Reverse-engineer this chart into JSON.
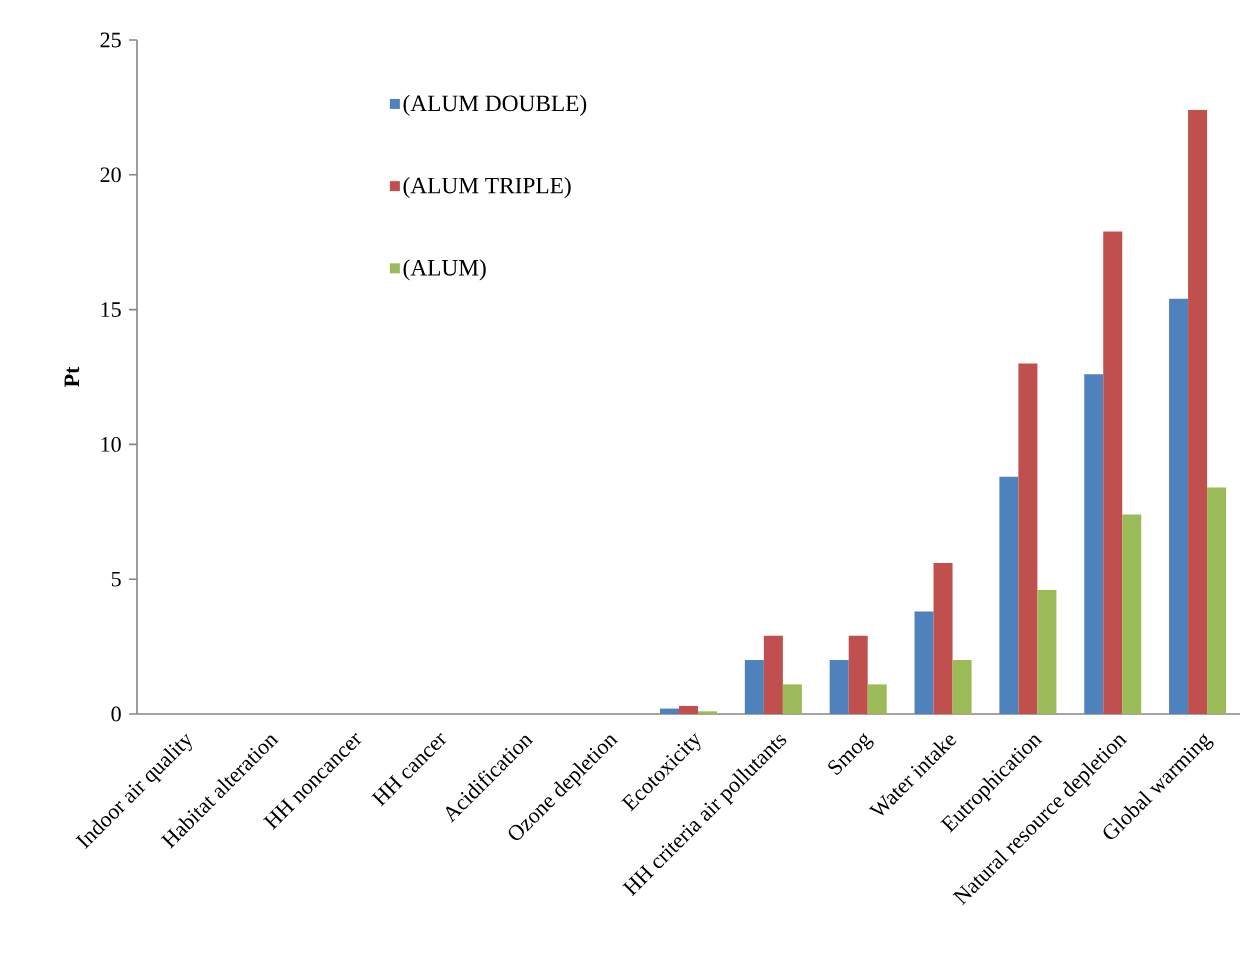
{
  "chart_data": {
    "type": "bar",
    "ylabel": "Pt",
    "categories": [
      "Indoor air quality",
      "Habitat alteration",
      "HH noncancer",
      "HH cancer",
      "Acidification",
      "Ozone depletion",
      "Ecotoxicity",
      "HH criteria air pollutants",
      "Smog",
      "Water intake",
      "Eutrophication",
      "Natural resource depletion",
      "Global warming"
    ],
    "series": [
      {
        "name": "(ALUM DOUBLE)",
        "color": "#4f81bd",
        "values": [
          0,
          0,
          0,
          0,
          0,
          0,
          0.2,
          2.0,
          2.0,
          3.8,
          8.8,
          12.6,
          15.4
        ]
      },
      {
        "name": "(ALUM TRIPLE)",
        "color": "#c0504d",
        "values": [
          0,
          0,
          0,
          0,
          0,
          0,
          0.3,
          2.9,
          2.9,
          5.6,
          13.0,
          17.9,
          22.4
        ]
      },
      {
        "name": "(ALUM)",
        "color": "#9bbb59",
        "values": [
          0,
          0,
          0,
          0,
          0,
          0,
          0.1,
          1.1,
          1.1,
          2.0,
          4.6,
          7.4,
          8.4
        ]
      }
    ],
    "ylim": [
      0,
      25
    ],
    "yticks": [
      0,
      5,
      10,
      15,
      20,
      25
    ],
    "legend": "top"
  }
}
